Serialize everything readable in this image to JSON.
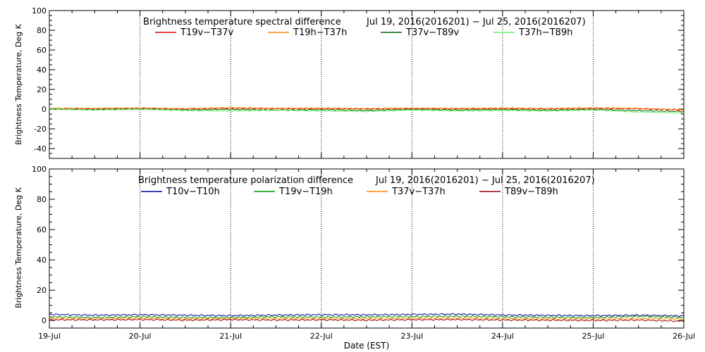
{
  "xlabel": "Date (EST)",
  "x_categories": [
    "19-Jul",
    "20-Jul",
    "21-Jul",
    "22-Jul",
    "23-Jul",
    "24-Jul",
    "25-Jul",
    "26-Jul"
  ],
  "chart_data": [
    {
      "type": "line",
      "title": "Brightness temperature spectral difference",
      "date_range": "Jul 19, 2016(2016201) − Jul 25, 2016(2016207)",
      "xlabel": "",
      "ylabel": "Brightness Temperature, Deg K",
      "xlim": [
        0,
        7
      ],
      "ylim": [
        -50,
        100
      ],
      "yticks": [
        -40,
        -20,
        0,
        20,
        40,
        60,
        80,
        100
      ],
      "grid": "vertical dotted at day boundaries",
      "legend": "top",
      "series": [
        {
          "name": "T19v−T37v",
          "color": "#dd0000",
          "x": [
            0,
            0.5,
            1,
            1.5,
            2,
            2.5,
            3,
            3.5,
            4,
            4.5,
            5,
            5.5,
            6,
            6.5,
            7
          ],
          "values": [
            0.5,
            0.3,
            0.8,
            0.2,
            1.0,
            0.4,
            0.6,
            0.2,
            0.5,
            0.3,
            0.6,
            0.2,
            0.8,
            0.4,
            -1.0
          ]
        },
        {
          "name": "T19h−T37h",
          "color": "#ff8800",
          "x": [
            0,
            0.5,
            1,
            1.5,
            2,
            2.5,
            3,
            3.5,
            4,
            4.5,
            5,
            5.5,
            6,
            6.5,
            7
          ],
          "values": [
            1.0,
            0.8,
            1.2,
            0.5,
            1.5,
            0.9,
            1.0,
            0.6,
            1.1,
            0.7,
            1.2,
            0.6,
            1.4,
            0.8,
            -0.5
          ]
        },
        {
          "name": "T37v−T89v",
          "color": "#006600",
          "x": [
            0,
            0.5,
            1,
            1.5,
            2,
            2.5,
            3,
            3.5,
            4,
            4.5,
            5,
            5.5,
            6,
            6.5,
            7
          ],
          "values": [
            0.0,
            -0.5,
            0.2,
            -0.8,
            -0.2,
            -1.0,
            -0.5,
            -1.2,
            -0.3,
            -0.8,
            -0.4,
            -1.0,
            -0.2,
            -1.5,
            -2.5
          ]
        },
        {
          "name": "T37h−T89h",
          "color": "#66ee66",
          "x": [
            0,
            0.5,
            1,
            1.5,
            2,
            2.5,
            3,
            3.5,
            4,
            4.5,
            5,
            5.5,
            6,
            6.5,
            7
          ],
          "values": [
            0.5,
            -1.0,
            0.0,
            -1.5,
            -2.0,
            -1.0,
            -2.0,
            -2.5,
            -1.0,
            -2.0,
            -1.5,
            -2.0,
            -1.0,
            -3.0,
            -4.0
          ]
        }
      ]
    },
    {
      "type": "line",
      "title": "Brightness temperature polarization difference",
      "date_range": "Jul 19, 2016(2016201) − Jul 25, 2016(2016207)",
      "xlabel": "Date (EST)",
      "ylabel": "Brightness Temperature, Deg K",
      "xlim": [
        0,
        7
      ],
      "ylim": [
        -5,
        100
      ],
      "yticks": [
        0,
        20,
        40,
        60,
        80,
        100
      ],
      "grid": "vertical dotted at day boundaries",
      "legend": "top",
      "series": [
        {
          "name": "T10v−T10h",
          "color": "#000099",
          "x": [
            0,
            0.5,
            1,
            1.5,
            2,
            2.5,
            3,
            3.5,
            4,
            4.5,
            5,
            5.5,
            6,
            6.5,
            7
          ],
          "values": [
            4.0,
            3.5,
            3.8,
            3.5,
            3.2,
            3.6,
            3.8,
            3.7,
            4.0,
            4.2,
            3.6,
            3.4,
            3.2,
            3.5,
            3.0
          ]
        },
        {
          "name": "T19v−T19h",
          "color": "#009900",
          "x": [
            0,
            0.5,
            1,
            1.5,
            2,
            2.5,
            3,
            3.5,
            4,
            4.5,
            5,
            5.5,
            6,
            6.5,
            7
          ],
          "values": [
            2.5,
            2.0,
            2.5,
            2.0,
            2.0,
            2.5,
            2.3,
            2.4,
            2.6,
            2.8,
            2.4,
            2.2,
            2.0,
            2.8,
            2.0
          ]
        },
        {
          "name": "T37v−T37h",
          "color": "#ff8800",
          "x": [
            0,
            0.5,
            1,
            1.5,
            2,
            2.5,
            3,
            3.5,
            4,
            4.5,
            5,
            5.5,
            6,
            6.5,
            7
          ],
          "values": [
            1.5,
            1.2,
            1.5,
            1.0,
            1.2,
            1.4,
            1.3,
            1.2,
            1.4,
            1.5,
            1.2,
            1.1,
            1.0,
            1.4,
            1.0
          ]
        },
        {
          "name": "T89v−T89h",
          "color": "#990000",
          "x": [
            0,
            0.5,
            1,
            1.5,
            2,
            2.5,
            3,
            3.5,
            4,
            4.5,
            5,
            5.5,
            6,
            6.5,
            7
          ],
          "values": [
            0.5,
            0.4,
            0.6,
            0.2,
            0.5,
            0.3,
            0.4,
            0.2,
            0.5,
            0.6,
            0.3,
            0.2,
            0.0,
            0.3,
            -0.5
          ]
        }
      ]
    }
  ]
}
